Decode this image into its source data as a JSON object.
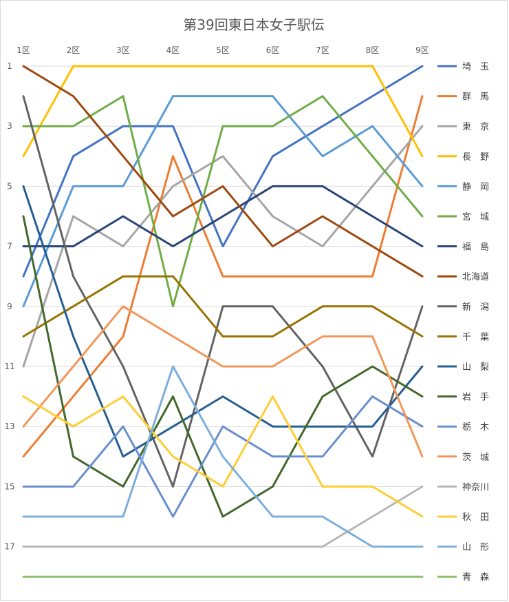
{
  "chart_data": {
    "type": "line",
    "title": "第39回東日本女子駅伝",
    "x": [
      "1区",
      "2区",
      "3区",
      "4区",
      "5区",
      "6区",
      "7区",
      "8区",
      "9区"
    ],
    "ytick_labels": [
      "1",
      "3",
      "5",
      "7",
      "9",
      "11",
      "13",
      "15",
      "17"
    ],
    "ylim": [
      1,
      18.8
    ],
    "y_inverted": true,
    "grid": true,
    "legend_position": "right",
    "series": [
      {
        "name": "埼　玉",
        "color": "#4472c4",
        "values": [
          8,
          4,
          3,
          3,
          7,
          4,
          3,
          2,
          1
        ]
      },
      {
        "name": "群　馬",
        "color": "#ed7d31",
        "values": [
          14,
          12,
          10,
          4,
          8,
          8,
          8,
          8,
          2
        ]
      },
      {
        "name": "東　京",
        "color": "#a5a5a5",
        "values": [
          11,
          6,
          7,
          5,
          4,
          6,
          7,
          5,
          3
        ]
      },
      {
        "name": "長　野",
        "color": "#ffc000",
        "values": [
          4,
          1,
          1,
          1,
          1,
          1,
          1,
          1,
          4
        ]
      },
      {
        "name": "静　岡",
        "color": "#5b9bd5",
        "values": [
          9,
          5,
          5,
          2,
          2,
          2,
          4,
          3,
          5
        ]
      },
      {
        "name": "宮　城",
        "color": "#70ad47",
        "values": [
          3,
          3,
          2,
          9,
          3,
          3,
          2,
          4,
          6
        ]
      },
      {
        "name": "福　島",
        "color": "#264478",
        "values": [
          7,
          7,
          6,
          7,
          6,
          5,
          5,
          6,
          7
        ]
      },
      {
        "name": "北海道",
        "color": "#9e480e",
        "values": [
          1,
          2,
          4,
          6,
          5,
          7,
          6,
          7,
          8
        ]
      },
      {
        "name": "新　潟",
        "color": "#636363",
        "values": [
          2,
          8,
          11,
          15,
          9,
          9,
          11,
          14,
          9
        ]
      },
      {
        "name": "千　葉",
        "color": "#997300",
        "values": [
          10,
          9,
          8,
          8,
          10,
          10,
          9,
          9,
          10
        ]
      },
      {
        "name": "山　梨",
        "color": "#255e91",
        "values": [
          5,
          10,
          14,
          13,
          12,
          13,
          13,
          13,
          11
        ]
      },
      {
        "name": "岩　手",
        "color": "#43682b",
        "values": [
          6,
          14,
          15,
          12,
          16,
          15,
          12,
          11,
          12
        ]
      },
      {
        "name": "栃　木",
        "color": "#698ed0",
        "values": [
          15,
          15,
          13,
          16,
          13,
          14,
          14,
          12,
          13
        ]
      },
      {
        "name": "茨　城",
        "color": "#f1975a",
        "values": [
          13,
          11,
          9,
          10,
          11,
          11,
          10,
          10,
          14
        ]
      },
      {
        "name": "神奈川",
        "color": "#b7b7b7",
        "values": [
          17,
          17,
          17,
          17,
          17,
          17,
          17,
          16,
          15
        ]
      },
      {
        "name": "秋　田",
        "color": "#ffcd33",
        "values": [
          12,
          13,
          12,
          14,
          15,
          12,
          15,
          15,
          16
        ]
      },
      {
        "name": "山　形",
        "color": "#7cafdd",
        "values": [
          16,
          16,
          16,
          11,
          14,
          16,
          16,
          17,
          17
        ]
      },
      {
        "name": "青　森",
        "color": "#8cc168",
        "values": [
          18,
          18,
          18,
          18,
          18,
          18,
          18,
          18,
          18
        ]
      }
    ]
  }
}
